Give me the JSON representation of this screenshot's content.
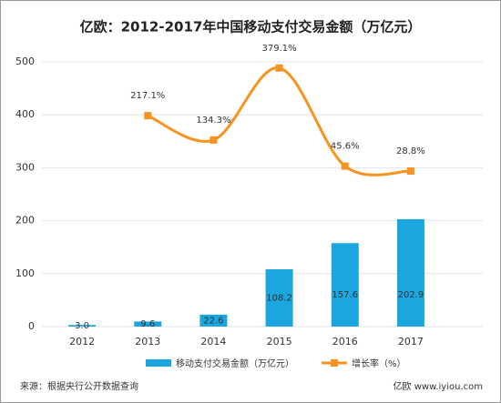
{
  "chart_data": {
    "type": "bar-line",
    "title": "亿欧：2012-2017年中国移动支付交易金额（万亿元）",
    "categories": [
      "2012",
      "2013",
      "2014",
      "2015",
      "2016",
      "2017"
    ],
    "series": [
      {
        "name": "移动支付交易金额（万亿元）",
        "type": "bar",
        "color": "#1ba6e0",
        "values": [
          3.0,
          9.6,
          22.6,
          108.2,
          157.6,
          202.9
        ],
        "value_labels": [
          "3.0",
          "9.6",
          "22.6",
          "108.2",
          "157.6",
          "202.9"
        ]
      },
      {
        "name": "增长率（%）",
        "type": "line",
        "axis": "y2",
        "color": "#f7931e",
        "values": [
          null,
          217.1,
          134.3,
          379.1,
          45.6,
          28.8
        ],
        "value_labels": [
          null,
          "217.1%",
          "134.3%",
          "379.1%",
          "45.6%",
          "28.8%"
        ]
      }
    ],
    "ylim": [
      0,
      500
    ],
    "yticks": [
      0,
      100,
      200,
      300,
      400,
      500
    ],
    "y2lim": [
      -500,
      400
    ],
    "grid": true,
    "legend": "bottom",
    "source": "来源：根据央行公开数据查询",
    "footer": "亿欧 www.iyiou.com"
  }
}
